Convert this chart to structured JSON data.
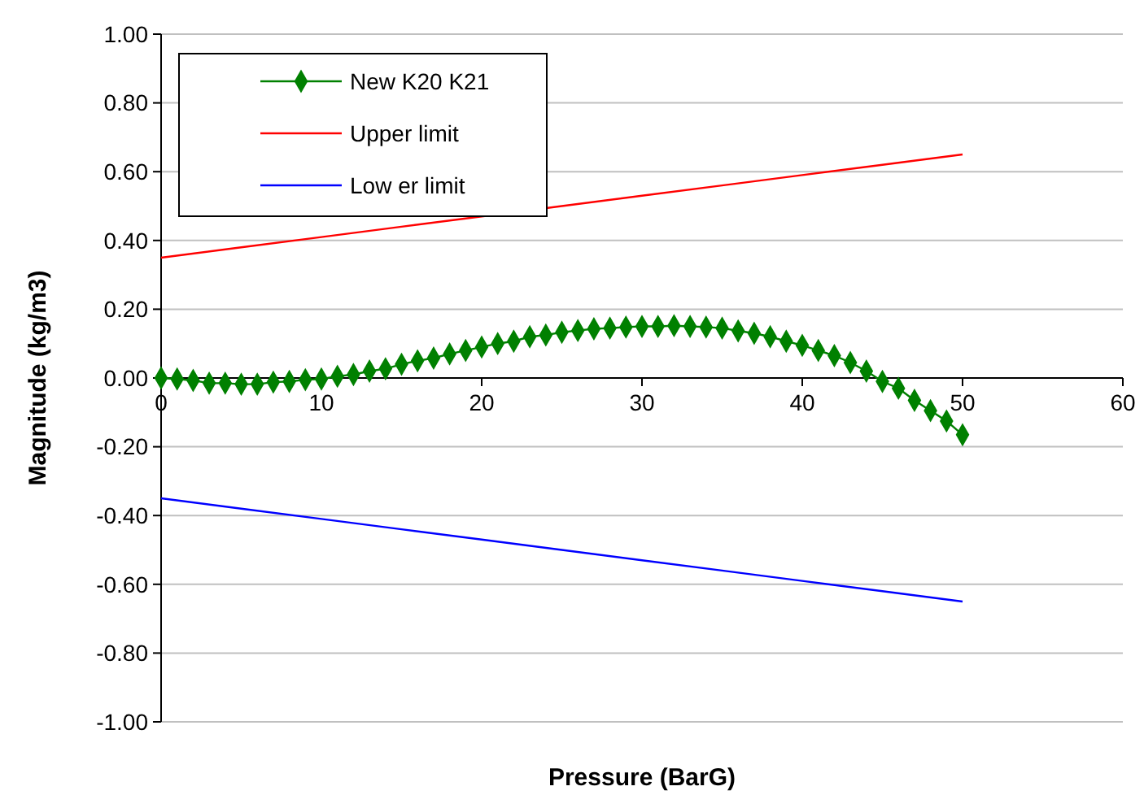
{
  "chart_data": {
    "type": "line",
    "xlabel": "Pressure (BarG)",
    "ylabel": "Magnitude (kg/m3)",
    "xlim": [
      0,
      60
    ],
    "xticks": [
      0,
      10,
      20,
      30,
      40,
      50,
      60
    ],
    "ylim": [
      -1,
      1
    ],
    "yticks": [
      {
        "value": -1,
        "label": "-1.00"
      },
      {
        "value": -0.8,
        "label": "-0.80"
      },
      {
        "value": -0.6,
        "label": "-0.60"
      },
      {
        "value": -0.4,
        "label": "-0.40"
      },
      {
        "value": -0.2,
        "label": "-0.20"
      },
      {
        "value": 0,
        "label": "0.00"
      },
      {
        "value": 0.2,
        "label": "0.20"
      },
      {
        "value": 0.4,
        "label": "0.40"
      },
      {
        "value": 0.6,
        "label": "0.60"
      },
      {
        "value": 0.8,
        "label": "0.80"
      },
      {
        "value": 1,
        "label": "1.00"
      }
    ],
    "grid": "y",
    "legend": "top left",
    "series": [
      {
        "name": "New  K20 K21",
        "color": "#008000",
        "marker": "diamond",
        "x": [
          0,
          1,
          2,
          3,
          4,
          5,
          6,
          7,
          8,
          9,
          10,
          11,
          12,
          13,
          14,
          15,
          16,
          17,
          18,
          19,
          20,
          21,
          22,
          23,
          24,
          25,
          26,
          27,
          28,
          29,
          30,
          31,
          32,
          33,
          34,
          35,
          36,
          37,
          38,
          39,
          40,
          41,
          42,
          43,
          44,
          45,
          46,
          47,
          48,
          49,
          50
        ],
        "values": [
          0,
          -0.003,
          -0.007,
          -0.015,
          -0.015,
          -0.018,
          -0.018,
          -0.012,
          -0.01,
          -0.005,
          -0.003,
          0.005,
          0.01,
          0.02,
          0.027,
          0.04,
          0.05,
          0.058,
          0.07,
          0.08,
          0.09,
          0.1,
          0.107,
          0.12,
          0.125,
          0.133,
          0.138,
          0.143,
          0.145,
          0.148,
          0.15,
          0.15,
          0.152,
          0.15,
          0.148,
          0.145,
          0.137,
          0.13,
          0.12,
          0.107,
          0.095,
          0.08,
          0.065,
          0.045,
          0.02,
          -0.01,
          -0.03,
          -0.065,
          -0.095,
          -0.125,
          -0.165
        ]
      },
      {
        "name": "Upper limit",
        "color": "#ff0000",
        "marker": "none",
        "x": [
          0,
          5,
          10,
          15,
          20,
          25,
          30,
          35,
          40,
          45,
          50
        ],
        "values": [
          0.35,
          0.38,
          0.41,
          0.44,
          0.47,
          0.5,
          0.53,
          0.56,
          0.59,
          0.62,
          0.65
        ]
      },
      {
        "name": "Low er limit",
        "color": "#0000ff",
        "marker": "none",
        "x": [
          0,
          5,
          10,
          15,
          20,
          25,
          30,
          35,
          40,
          45,
          50
        ],
        "values": [
          -0.35,
          -0.38,
          -0.41,
          -0.44,
          -0.47,
          -0.5,
          -0.53,
          -0.56,
          -0.59,
          -0.62,
          -0.65
        ]
      }
    ]
  }
}
